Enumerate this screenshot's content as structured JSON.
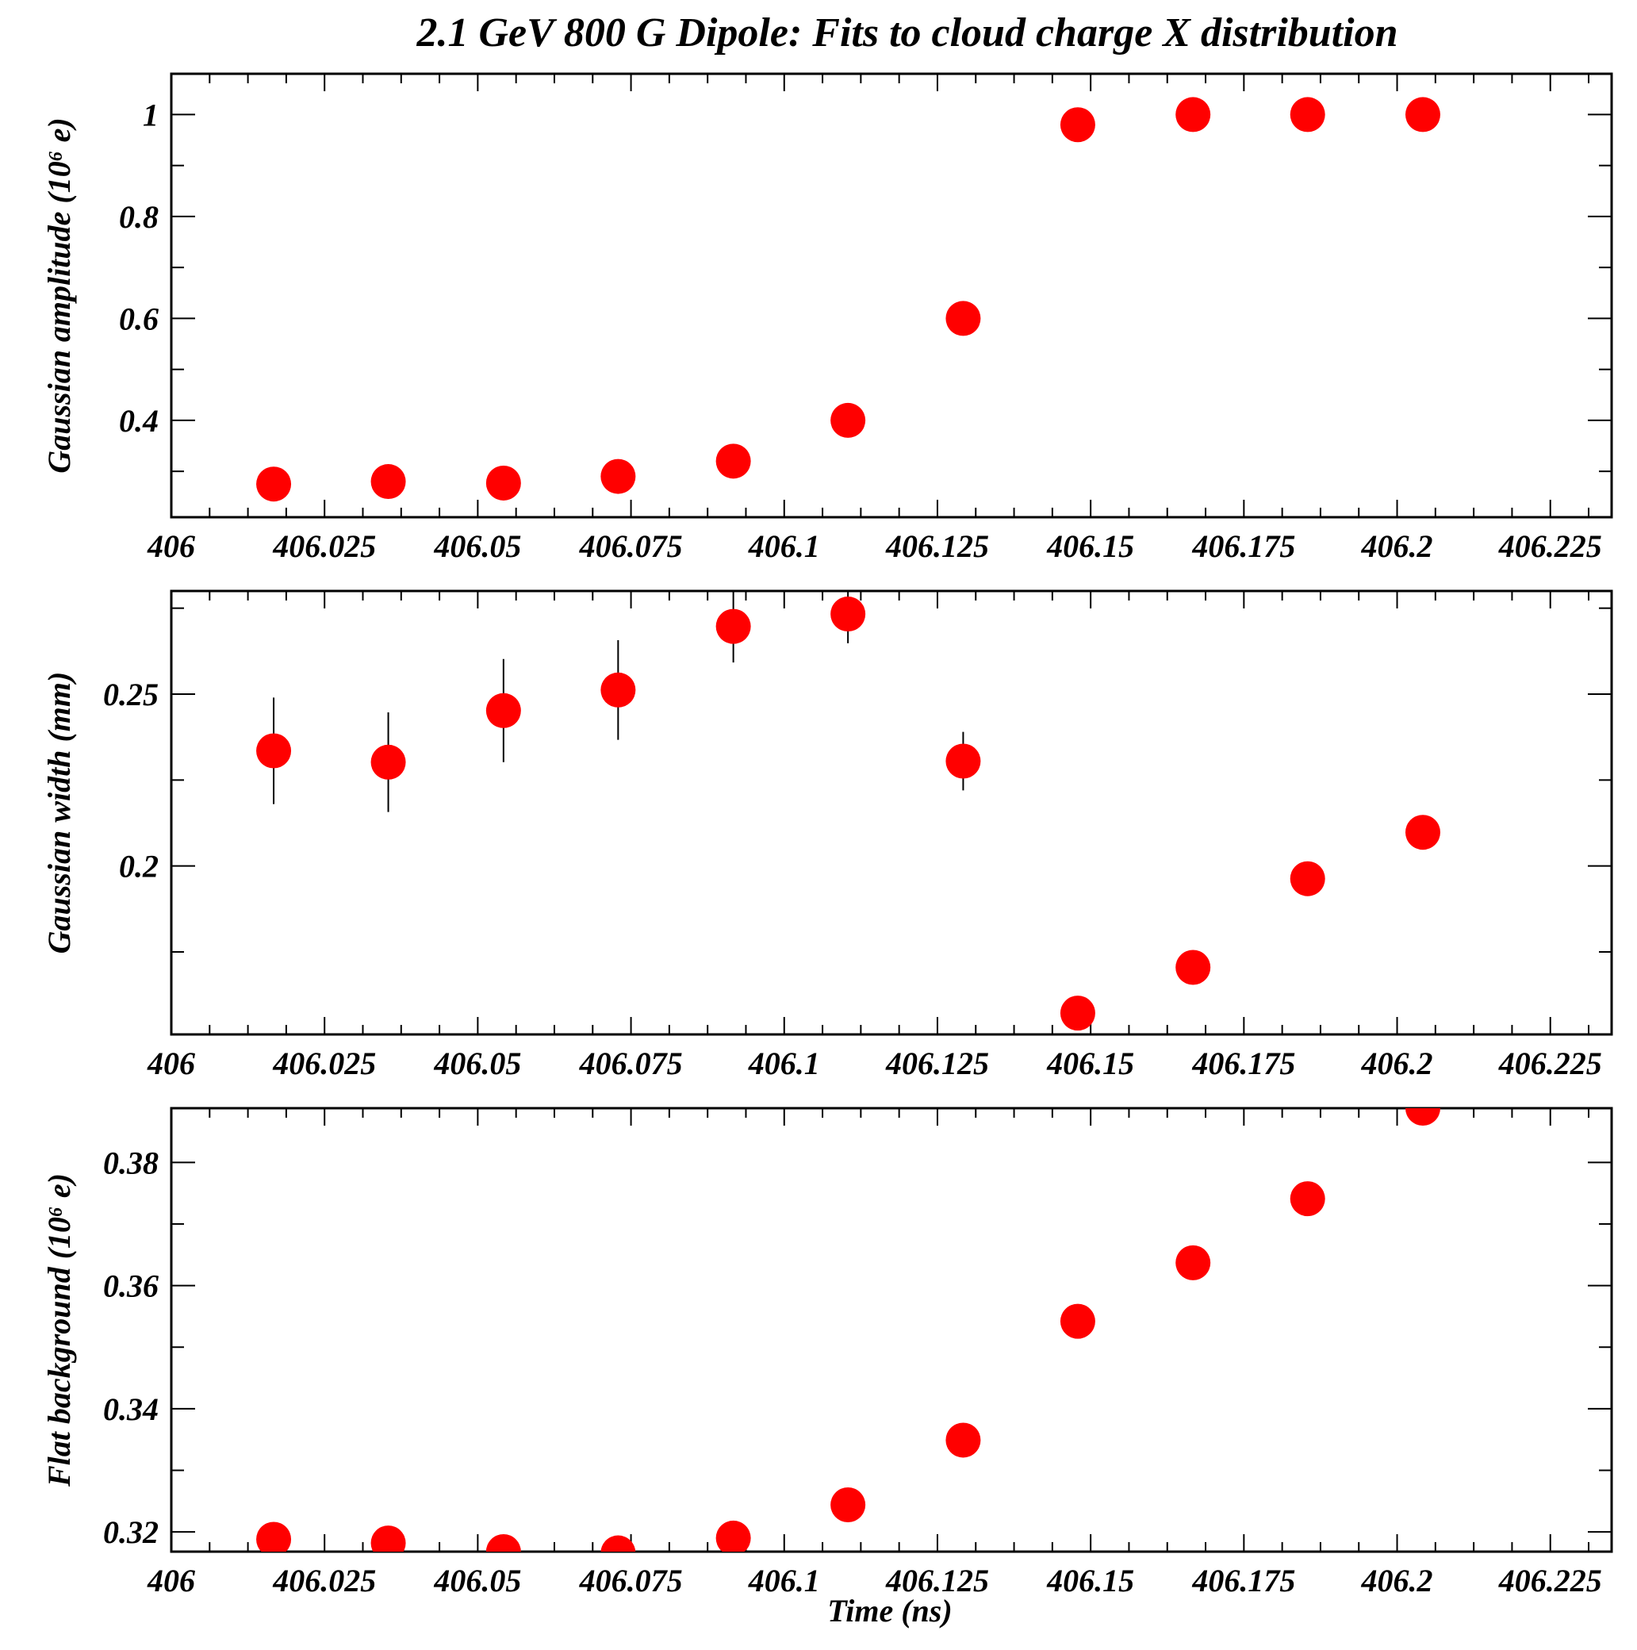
{
  "title": "2.1 GeV 800 G Dipole: Fits to cloud charge X distribution",
  "colors": {
    "marker": "#ff0000",
    "axes": "#000000",
    "background": "#ffffff"
  },
  "chart_data": [
    {
      "type": "scatter",
      "ylabel": "Gaussian amplitude (10⁶ e)",
      "xlabel": "",
      "xlim": [
        406,
        406.235
      ],
      "ylim": [
        0.21,
        1.08
      ],
      "xticks": [
        406,
        406.025,
        406.05,
        406.075,
        406.1,
        406.125,
        406.15,
        406.175,
        406.2,
        406.225
      ],
      "xtick_labels": [
        "406",
        "406.025",
        "406.05",
        "406.075",
        "406.1",
        "406.125",
        "406.15",
        "406.175",
        "406.2",
        "406.225"
      ],
      "yticks": [
        0.4,
        0.6,
        0.8,
        1.0
      ],
      "ytick_labels": [
        "0.4",
        "0.6",
        "0.8",
        "1"
      ],
      "grid": false,
      "x": [
        406.0167,
        406.0354,
        406.0542,
        406.0729,
        406.0917,
        406.1104,
        406.1292,
        406.1479,
        406.1667,
        406.1854,
        406.2042
      ],
      "y": [
        0.275,
        0.28,
        0.277,
        0.29,
        0.32,
        0.4,
        0.6,
        0.98,
        1.0,
        1.0,
        1.0
      ],
      "yerr": [
        0,
        0,
        0,
        0,
        0,
        0,
        0,
        0,
        0,
        0,
        0
      ]
    },
    {
      "type": "scatter",
      "ylabel": "Gaussian width (mm)",
      "xlabel": "",
      "xlim": [
        406,
        406.235
      ],
      "ylim": [
        0.151,
        0.28
      ],
      "xticks": [
        406,
        406.025,
        406.05,
        406.075,
        406.1,
        406.125,
        406.15,
        406.175,
        406.2,
        406.225
      ],
      "xtick_labels": [
        "406",
        "406.025",
        "406.05",
        "406.075",
        "406.1",
        "406.125",
        "406.15",
        "406.175",
        "406.2",
        "406.225"
      ],
      "yticks": [
        0.2,
        0.25
      ],
      "ytick_labels": [
        "0.2",
        "0.25"
      ],
      "grid": false,
      "x": [
        406.0167,
        406.0354,
        406.0542,
        406.0729,
        406.0917,
        406.1104,
        406.1292,
        406.1479,
        406.1667,
        406.1854,
        406.2042
      ],
      "y": [
        0.2335,
        0.2302,
        0.2452,
        0.2512,
        0.2697,
        0.2733,
        0.2305,
        0.1572,
        0.1705,
        0.1963,
        0.2098
      ],
      "yerr": [
        0.0155,
        0.0145,
        0.015,
        0.0145,
        0.0105,
        0.0085,
        0.0085,
        0.0,
        0.0,
        0.0,
        0.0
      ]
    },
    {
      "type": "scatter",
      "ylabel": "Flat background (10⁶ e)",
      "xlabel": "Time (ns)",
      "xlim": [
        406,
        406.235
      ],
      "ylim": [
        0.3168,
        0.3888
      ],
      "xticks": [
        406,
        406.025,
        406.05,
        406.075,
        406.1,
        406.125,
        406.15,
        406.175,
        406.2,
        406.225
      ],
      "xtick_labels": [
        "406",
        "406.025",
        "406.05",
        "406.075",
        "406.1",
        "406.125",
        "406.15",
        "406.175",
        "406.2",
        "406.225"
      ],
      "yticks": [
        0.32,
        0.34,
        0.36,
        0.38
      ],
      "ytick_labels": [
        "0.32",
        "0.34",
        "0.36",
        "0.38"
      ],
      "grid": false,
      "x": [
        406.0167,
        406.0354,
        406.0542,
        406.0729,
        406.0917,
        406.1104,
        406.1292,
        406.1479,
        406.1667,
        406.1854,
        406.2042
      ],
      "y": [
        0.3188,
        0.3182,
        0.3168,
        0.3166,
        0.319,
        0.3244,
        0.3349,
        0.3542,
        0.3637,
        0.3741,
        0.3888
      ],
      "yerr": [
        0,
        0,
        0,
        0,
        0,
        0,
        0,
        0,
        0,
        0,
        0
      ]
    }
  ]
}
